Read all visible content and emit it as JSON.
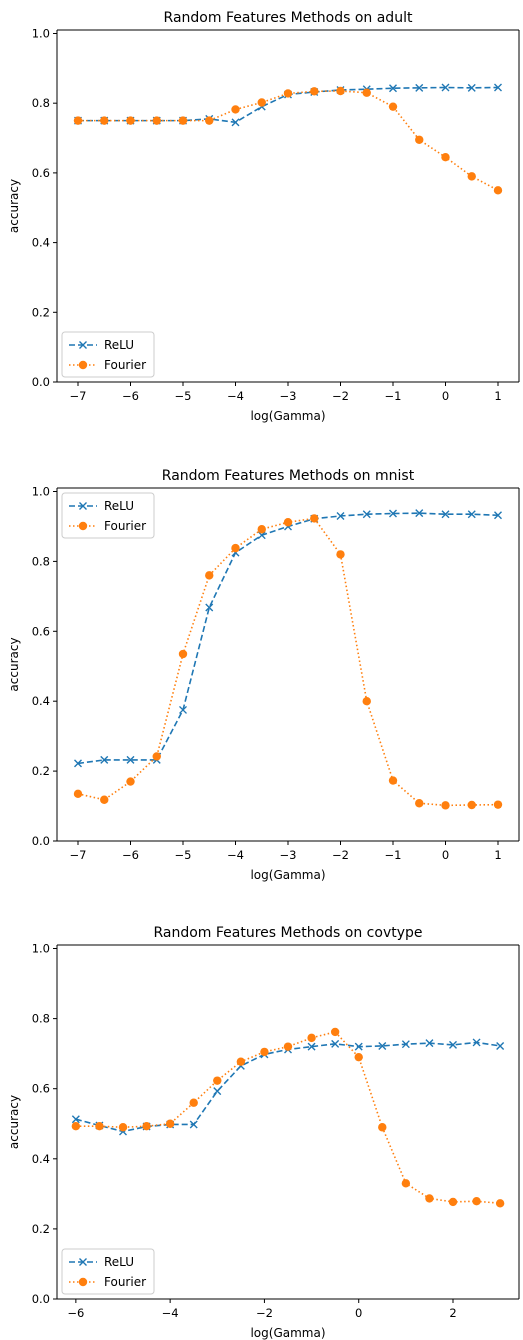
{
  "chart_data": [
    {
      "type": "line",
      "title": "Random Features Methods on adult",
      "xlabel": "log(Gamma)",
      "ylabel": "accuracy",
      "xlim": [
        -7.4,
        1.4
      ],
      "ylim": [
        0,
        1.01
      ],
      "xticks": [
        -7,
        -6,
        -5,
        -4,
        -3,
        -2,
        -1,
        0,
        1
      ],
      "xtick_labels": [
        "−7",
        "−6",
        "−5",
        "−4",
        "−3",
        "−2",
        "−1",
        "0",
        "1"
      ],
      "yticks": [
        0.0,
        0.2,
        0.4,
        0.6,
        0.8,
        1.0
      ],
      "ytick_labels": [
        "0.0",
        "0.2",
        "0.4",
        "0.6",
        "0.8",
        "1.0"
      ],
      "legend": "lower-left",
      "grid": false,
      "x": [
        -7,
        -6.5,
        -6,
        -5.5,
        -5,
        -4.5,
        -4,
        -3.5,
        -3,
        -2.5,
        -2,
        -1.5,
        -1,
        -0.5,
        0,
        0.5,
        1
      ],
      "series": [
        {
          "name": "ReLU",
          "style": "dashed-x",
          "color": "#1f77b4",
          "values": [
            0.75,
            0.75,
            0.75,
            0.75,
            0.75,
            0.755,
            0.745,
            0.79,
            0.825,
            0.832,
            0.838,
            0.84,
            0.843,
            0.844,
            0.845,
            0.844,
            0.845
          ]
        },
        {
          "name": "Fourier",
          "style": "dotted-circle",
          "color": "#ff7f0e",
          "values": [
            0.75,
            0.75,
            0.75,
            0.75,
            0.75,
            0.75,
            0.782,
            0.802,
            0.828,
            0.834,
            0.835,
            0.83,
            0.79,
            0.695,
            0.645,
            0.59,
            0.55
          ]
        }
      ]
    },
    {
      "type": "line",
      "title": "Random Features Methods on mnist",
      "xlabel": "log(Gamma)",
      "ylabel": "accuracy",
      "xlim": [
        -7.4,
        1.4
      ],
      "ylim": [
        0,
        1.01
      ],
      "xticks": [
        -7,
        -6,
        -5,
        -4,
        -3,
        -2,
        -1,
        0,
        1
      ],
      "xtick_labels": [
        "−7",
        "−6",
        "−5",
        "−4",
        "−3",
        "−2",
        "−1",
        "0",
        "1"
      ],
      "yticks": [
        0.0,
        0.2,
        0.4,
        0.6,
        0.8,
        1.0
      ],
      "ytick_labels": [
        "0.0",
        "0.2",
        "0.4",
        "0.6",
        "0.8",
        "1.0"
      ],
      "legend": "upper-left",
      "grid": false,
      "x": [
        -7,
        -6.5,
        -6,
        -5.5,
        -5,
        -4.5,
        -4,
        -3.5,
        -3,
        -2.5,
        -2,
        -1.5,
        -1,
        -0.5,
        0,
        0.5,
        1
      ],
      "series": [
        {
          "name": "ReLU",
          "style": "dashed-x",
          "color": "#1f77b4",
          "values": [
            0.222,
            0.232,
            0.232,
            0.232,
            0.375,
            0.668,
            0.825,
            0.875,
            0.9,
            0.922,
            0.93,
            0.935,
            0.937,
            0.938,
            0.935,
            0.935,
            0.932
          ]
        },
        {
          "name": "Fourier",
          "style": "dotted-circle",
          "color": "#ff7f0e",
          "values": [
            0.135,
            0.118,
            0.17,
            0.242,
            0.535,
            0.76,
            0.838,
            0.892,
            0.912,
            0.923,
            0.82,
            0.4,
            0.173,
            0.108,
            0.102,
            0.103,
            0.104
          ]
        }
      ]
    },
    {
      "type": "line",
      "title": "Random Features Methods on covtype",
      "xlabel": "log(Gamma)",
      "ylabel": "accuracy",
      "xlim": [
        -6.4,
        3.4
      ],
      "ylim": [
        0,
        1.01
      ],
      "xticks": [
        -6,
        -4,
        -2,
        0,
        2
      ],
      "xtick_labels": [
        "−6",
        "−4",
        "−2",
        "0",
        "2"
      ],
      "yticks": [
        0.0,
        0.2,
        0.4,
        0.6,
        0.8,
        1.0
      ],
      "ytick_labels": [
        "0.0",
        "0.2",
        "0.4",
        "0.6",
        "0.8",
        "1.0"
      ],
      "legend": "lower-left",
      "grid": false,
      "x": [
        -6,
        -5.5,
        -5,
        -4.5,
        -4,
        -3.5,
        -3,
        -2.5,
        -2,
        -1.5,
        -1,
        -0.5,
        0,
        0.5,
        1,
        1.5,
        2,
        2.5,
        3
      ],
      "series": [
        {
          "name": "ReLU",
          "style": "dashed-x",
          "color": "#1f77b4",
          "values": [
            0.513,
            0.495,
            0.478,
            0.492,
            0.498,
            0.498,
            0.593,
            0.665,
            0.698,
            0.712,
            0.72,
            0.728,
            0.72,
            0.722,
            0.727,
            0.73,
            0.725,
            0.732,
            0.722
          ]
        },
        {
          "name": "Fourier",
          "style": "dotted-circle",
          "color": "#ff7f0e",
          "values": [
            0.493,
            0.493,
            0.49,
            0.493,
            0.5,
            0.56,
            0.623,
            0.677,
            0.705,
            0.72,
            0.745,
            0.762,
            0.69,
            0.49,
            0.33,
            0.287,
            0.277,
            0.279,
            0.273
          ]
        }
      ]
    }
  ]
}
